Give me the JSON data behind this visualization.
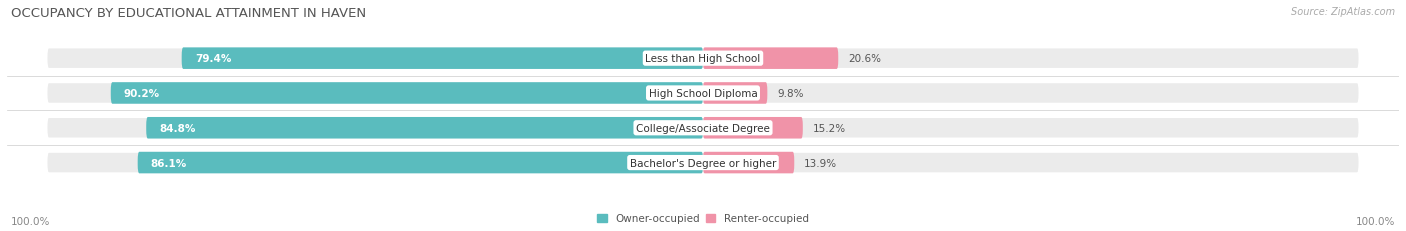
{
  "title": "OCCUPANCY BY EDUCATIONAL ATTAINMENT IN HAVEN",
  "source": "Source: ZipAtlas.com",
  "categories": [
    "Less than High School",
    "High School Diploma",
    "College/Associate Degree",
    "Bachelor's Degree or higher"
  ],
  "owner_values": [
    79.4,
    90.2,
    84.8,
    86.1
  ],
  "renter_values": [
    20.6,
    9.8,
    15.2,
    13.9
  ],
  "owner_color": "#5abcbe",
  "renter_color": "#f093a8",
  "row_bg_color": "#ebebeb",
  "title_fontsize": 9.5,
  "label_fontsize": 7.5,
  "tick_fontsize": 7.5,
  "source_fontsize": 7,
  "legend_fontsize": 7.5,
  "axis_label_left": "100.0%",
  "axis_label_right": "100.0%",
  "background_color": "#ffffff",
  "bar_height": 0.62,
  "total_width": 100.0
}
